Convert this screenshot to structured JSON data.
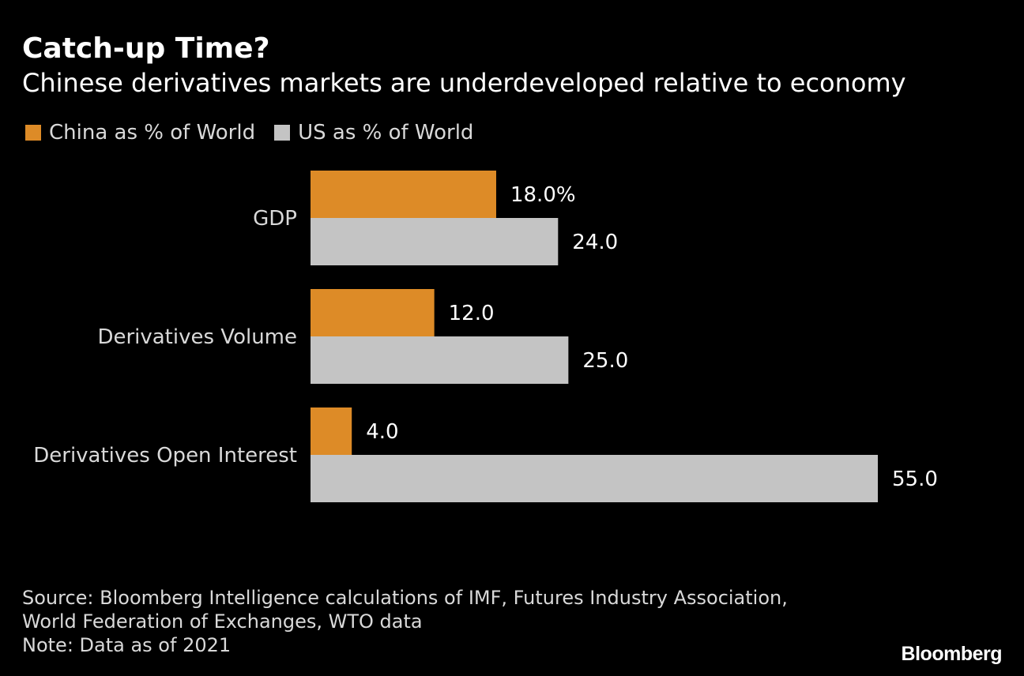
{
  "colors": {
    "background": "#000000",
    "china": "#dd8b27",
    "us": "#c4c4c4"
  },
  "header": {
    "title": "Catch-up Time?",
    "subtitle": "Chinese derivatives markets are underdeveloped relative to economy"
  },
  "legend": {
    "china_label": "China as % of World",
    "us_label": "US as % of World"
  },
  "chart_data": {
    "type": "bar",
    "orientation": "horizontal",
    "categories": [
      "GDP",
      "Derivatives Volume",
      "Derivatives Open Interest"
    ],
    "series": [
      {
        "name": "China as % of World",
        "values": [
          18.0,
          12.0,
          4.0
        ],
        "labels": [
          "18.0%",
          "12.0",
          "4.0"
        ]
      },
      {
        "name": "US as % of World",
        "values": [
          24.0,
          25.0,
          55.0
        ],
        "labels": [
          "24.0",
          "25.0",
          "55.0"
        ]
      }
    ],
    "title": "Catch-up Time?",
    "xlabel": "",
    "ylabel": "",
    "xlim": [
      0,
      55
    ],
    "grid": false,
    "legend_position": "top-left"
  },
  "footer": {
    "source_line1": "Source: Bloomberg Intelligence calculations of IMF, Futures Industry Association,",
    "source_line2": "World Federation of Exchanges, WTO data",
    "note": "Note: Data as of 2021"
  },
  "logo": "Bloomberg"
}
